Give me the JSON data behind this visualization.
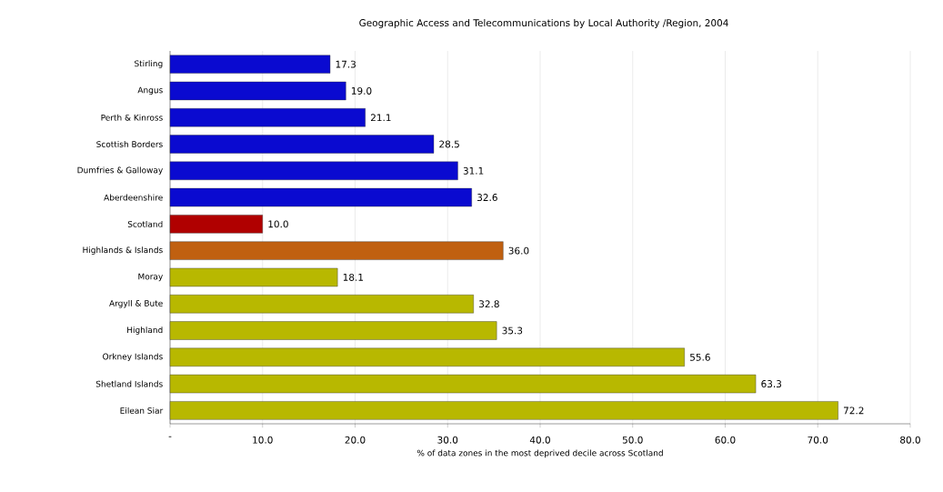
{
  "chart_data": {
    "type": "bar",
    "orientation": "horizontal",
    "title": "Geographic Access and Telecommunications by Local Authority /Region, 2004",
    "xlabel": "% of data zones in the most deprived decile across Scotland",
    "categories": [
      "Stirling",
      "Angus",
      "Perth & Kinross",
      "Scottish Borders",
      "Dumfries & Galloway",
      "Aberdeenshire",
      "Scotland",
      "Highlands & Islands",
      "Moray",
      "Argyll & Bute",
      "Highland",
      "Orkney Islands",
      "Shetland Islands",
      "Eilean Siar"
    ],
    "values": [
      17.3,
      19.0,
      21.1,
      28.5,
      31.1,
      32.6,
      10.0,
      36.0,
      18.1,
      32.8,
      35.3,
      55.6,
      63.3,
      72.2
    ],
    "value_labels": [
      "17.3",
      "19.0",
      "21.1",
      "28.5",
      "31.1",
      "32.6",
      "10.0",
      "36.0",
      "18.1",
      "32.8",
      "35.3",
      "55.6",
      "63.3",
      "72.2"
    ],
    "colors": [
      "#0a0ad0",
      "#0a0ad0",
      "#0a0ad0",
      "#0a0ad0",
      "#0a0ad0",
      "#0a0ad0",
      "#b00000",
      "#c06010",
      "#b8b800",
      "#b8b800",
      "#b8b800",
      "#b8b800",
      "#b8b800",
      "#b8b800"
    ],
    "xlim": [
      0,
      80
    ],
    "xticks": [
      {
        "value": 0,
        "label": "-"
      },
      {
        "value": 10,
        "label": "10.0"
      },
      {
        "value": 20,
        "label": "20.0"
      },
      {
        "value": 30,
        "label": "30.0"
      },
      {
        "value": 40,
        "label": "40.0"
      },
      {
        "value": 50,
        "label": "50.0"
      },
      {
        "value": 60,
        "label": "60.0"
      },
      {
        "value": 70,
        "label": "70.0"
      },
      {
        "value": 80,
        "label": "80.0"
      }
    ],
    "grid": "x"
  }
}
